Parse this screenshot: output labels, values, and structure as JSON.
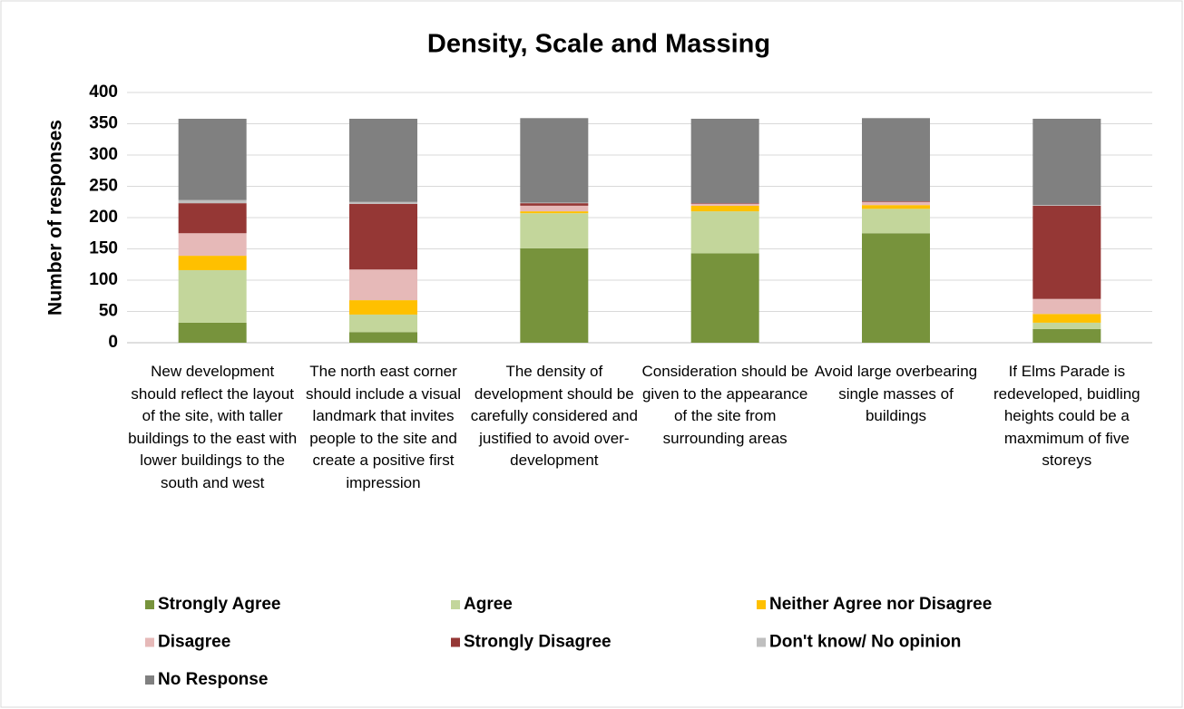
{
  "chart_data": {
    "type": "stacked_bar",
    "title": "Density, Scale and Massing",
    "y_label": "Number of responses",
    "categories": [
      "New development should reflect the layout of the site, with taller buildings to the east with lower buildings to the south and west",
      "The north east corner should include a visual landmark that invites people to the site and create a positive first impression",
      "The density of development should be carefully considered and justified to avoid over-development",
      "Consideration should be given to the appearance of the site from surrounding areas",
      "Avoid large overbearing single masses of buildings",
      "If Elms Parade is redeveloped, buidling heights could be a maxmimum of five storeys"
    ],
    "series": [
      {
        "name": "Strongly Agree",
        "color": "#77933c",
        "values": [
          32,
          17,
          151,
          143,
          175,
          22
        ]
      },
      {
        "name": "Agree",
        "color": "#c3d69b",
        "values": [
          84,
          28,
          56,
          67,
          39,
          10
        ]
      },
      {
        "name": "Neither Agree nor Disagree",
        "color": "#ffc000",
        "values": [
          23,
          23,
          3,
          9,
          6,
          14
        ]
      },
      {
        "name": "Disagree",
        "color": "#e6b9b8",
        "values": [
          36,
          49,
          9,
          3,
          5,
          24
        ]
      },
      {
        "name": "Strongly Disagree",
        "color": "#953735",
        "values": [
          48,
          105,
          4,
          1,
          1,
          149
        ]
      },
      {
        "name": "Don't know/ No opinion",
        "color": "#bfbfbf",
        "values": [
          5,
          3,
          1,
          0,
          0,
          1
        ]
      },
      {
        "name": "No Response",
        "color": "#808080",
        "values": [
          130,
          133,
          135,
          135,
          133,
          138
        ]
      }
    ],
    "ylim": [
      0,
      400
    ],
    "yticks": [
      0,
      50,
      100,
      150,
      200,
      250,
      300,
      350,
      400
    ],
    "grid": true
  }
}
